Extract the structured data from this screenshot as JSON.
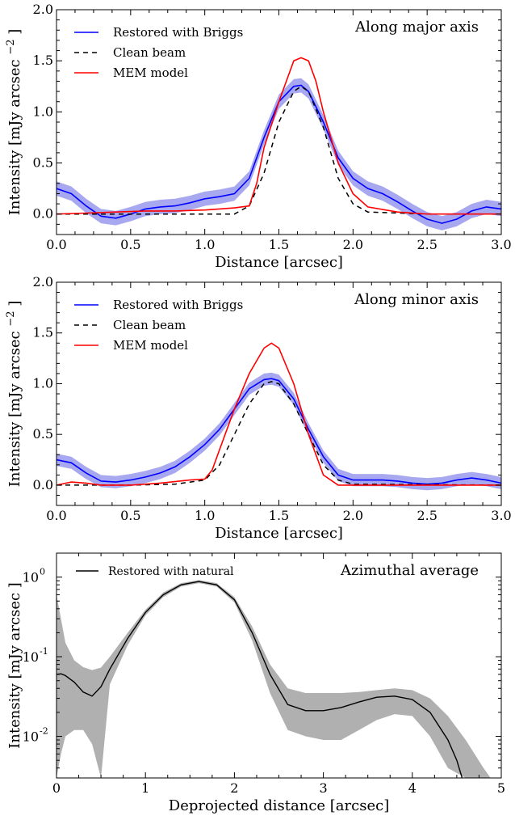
{
  "chart_data": [
    {
      "type": "line",
      "title": "Along major axis",
      "xlabel": "Distance [arcsec]",
      "ylabel": "Intensity [mJy arcsec",
      "ylabel_sup": "−2",
      "ylabel_close": "]",
      "xlim": [
        0.0,
        3.0
      ],
      "ylim": [
        -0.2,
        2.0
      ],
      "xticks": [
        "0.0",
        "0.5",
        "1.0",
        "1.5",
        "2.0",
        "2.5",
        "3.0"
      ],
      "yticks": [
        "0.0",
        "0.5",
        "1.0",
        "1.5",
        "2.0"
      ],
      "legend_position": "top-left",
      "colors": {
        "briggs": "#0000ff",
        "band": "#9999ee",
        "beam": "#000000",
        "mem": "#ff0000"
      },
      "series": [
        {
          "name": "Restored with Briggs",
          "style": "solid",
          "x": [
            0.0,
            0.1,
            0.2,
            0.3,
            0.4,
            0.5,
            0.6,
            0.7,
            0.8,
            0.9,
            1.0,
            1.1,
            1.2,
            1.3,
            1.4,
            1.5,
            1.6,
            1.65,
            1.7,
            1.8,
            1.9,
            2.0,
            2.1,
            2.2,
            2.3,
            2.4,
            2.5,
            2.6,
            2.7,
            2.8,
            2.9,
            3.0
          ],
          "y": [
            0.25,
            0.2,
            0.08,
            -0.02,
            -0.04,
            0.0,
            0.05,
            0.07,
            0.08,
            0.11,
            0.15,
            0.17,
            0.2,
            0.35,
            0.75,
            1.1,
            1.25,
            1.26,
            1.2,
            0.9,
            0.55,
            0.35,
            0.25,
            0.2,
            0.12,
            0.03,
            -0.05,
            -0.09,
            -0.05,
            0.03,
            0.07,
            0.05
          ],
          "band": 0.07
        },
        {
          "name": "Clean beam",
          "style": "dashed",
          "x": [
            0.0,
            0.5,
            1.0,
            1.2,
            1.3,
            1.4,
            1.5,
            1.6,
            1.65,
            1.7,
            1.8,
            1.9,
            2.0,
            2.1,
            2.5,
            3.0
          ],
          "y": [
            0.0,
            0.0,
            0.0,
            0.0,
            0.08,
            0.4,
            0.9,
            1.2,
            1.25,
            1.2,
            0.85,
            0.35,
            0.1,
            0.02,
            0.0,
            0.0
          ]
        },
        {
          "name": "MEM model",
          "style": "solid",
          "x": [
            0.0,
            0.2,
            0.4,
            0.6,
            0.8,
            1.0,
            1.2,
            1.3,
            1.35,
            1.4,
            1.5,
            1.6,
            1.65,
            1.7,
            1.75,
            1.8,
            1.9,
            2.0,
            2.1,
            2.3,
            2.5,
            3.0
          ],
          "y": [
            0.0,
            0.01,
            0.02,
            0.03,
            0.03,
            0.04,
            0.06,
            0.08,
            0.3,
            0.65,
            1.1,
            1.5,
            1.53,
            1.5,
            1.3,
            1.0,
            0.5,
            0.2,
            0.07,
            0.02,
            0.0,
            0.0
          ]
        }
      ]
    },
    {
      "type": "line",
      "title": "Along minor axis",
      "xlabel": "Distance [arcsec]",
      "ylabel": "Intensity [mJy arcsec",
      "ylabel_sup": "−2",
      "ylabel_close": "]",
      "xlim": [
        0.0,
        3.0
      ],
      "ylim": [
        -0.2,
        2.0
      ],
      "xticks": [
        "0.0",
        "0.5",
        "1.0",
        "1.5",
        "2.0",
        "2.5",
        "3.0"
      ],
      "yticks": [
        "0.0",
        "0.5",
        "1.0",
        "1.5",
        "2.0"
      ],
      "legend_position": "top-left",
      "colors": {
        "briggs": "#0000ff",
        "band": "#9999ee",
        "beam": "#000000",
        "mem": "#ff0000"
      },
      "series": [
        {
          "name": "Restored with Briggs",
          "style": "solid",
          "x": [
            0.0,
            0.1,
            0.2,
            0.3,
            0.4,
            0.5,
            0.6,
            0.7,
            0.8,
            0.9,
            1.0,
            1.1,
            1.2,
            1.3,
            1.4,
            1.45,
            1.5,
            1.6,
            1.7,
            1.8,
            1.9,
            2.0,
            2.1,
            2.2,
            2.3,
            2.4,
            2.5,
            2.6,
            2.7,
            2.8,
            2.9,
            3.0
          ],
          "y": [
            0.25,
            0.22,
            0.12,
            0.04,
            0.03,
            0.05,
            0.08,
            0.12,
            0.18,
            0.28,
            0.4,
            0.55,
            0.75,
            0.95,
            1.04,
            1.05,
            1.03,
            0.85,
            0.55,
            0.28,
            0.1,
            0.05,
            0.05,
            0.05,
            0.04,
            0.02,
            0.01,
            0.02,
            0.05,
            0.07,
            0.05,
            0.02
          ],
          "band": 0.06
        },
        {
          "name": "Clean beam",
          "style": "dashed",
          "x": [
            0.0,
            0.5,
            0.8,
            1.0,
            1.1,
            1.2,
            1.3,
            1.4,
            1.45,
            1.5,
            1.6,
            1.7,
            1.8,
            1.9,
            2.0,
            3.0
          ],
          "y": [
            0.0,
            0.0,
            0.01,
            0.05,
            0.2,
            0.5,
            0.8,
            1.0,
            1.02,
            1.0,
            0.8,
            0.5,
            0.2,
            0.05,
            0.01,
            0.0
          ],
          "band": 0
        },
        {
          "name": "MEM model",
          "style": "solid",
          "x": [
            0.0,
            0.1,
            0.2,
            0.3,
            0.5,
            0.7,
            0.9,
            1.0,
            1.05,
            1.1,
            1.2,
            1.3,
            1.4,
            1.45,
            1.5,
            1.6,
            1.7,
            1.8,
            1.9,
            2.0,
            2.5,
            3.0
          ],
          "y": [
            0.0,
            0.03,
            0.02,
            0.0,
            0.0,
            0.02,
            0.05,
            0.06,
            0.15,
            0.35,
            0.75,
            1.1,
            1.35,
            1.4,
            1.35,
            1.0,
            0.5,
            0.1,
            0.0,
            0.0,
            0.0,
            0.0
          ]
        }
      ]
    },
    {
      "type": "line",
      "title": "Azimuthal average",
      "xlabel": "Deprojected distance [arcsec]",
      "ylabel": "Intensity [mJy arcsec",
      "ylabel_sup": "",
      "ylabel_close": "]",
      "xlim": [
        0,
        5
      ],
      "ylim": [
        0.003,
        2.0
      ],
      "yscale": "log",
      "xticks": [
        "0",
        "1",
        "2",
        "3",
        "4",
        "5"
      ],
      "yticks": [
        "10",
        "10",
        "10"
      ],
      "ytick_exponents": [
        "0",
        "-1",
        "-2"
      ],
      "legend_position": "top-left",
      "colors": {
        "natural": "#000000",
        "band": "#b0b0b0"
      },
      "series": [
        {
          "name": "Restored with natural",
          "style": "solid",
          "x": [
            0.0,
            0.05,
            0.1,
            0.2,
            0.3,
            0.4,
            0.5,
            0.6,
            0.8,
            1.0,
            1.2,
            1.4,
            1.6,
            1.8,
            2.0,
            2.2,
            2.4,
            2.6,
            2.8,
            3.0,
            3.2,
            3.4,
            3.6,
            3.8,
            4.0,
            4.2,
            4.4,
            4.5,
            4.56
          ],
          "y": [
            0.06,
            0.061,
            0.058,
            0.048,
            0.036,
            0.032,
            0.042,
            0.07,
            0.17,
            0.36,
            0.6,
            0.8,
            0.88,
            0.8,
            0.52,
            0.2,
            0.06,
            0.025,
            0.021,
            0.021,
            0.023,
            0.027,
            0.031,
            0.032,
            0.029,
            0.02,
            0.009,
            0.005,
            0.003
          ]
        }
      ],
      "band": {
        "x": [
          0.0,
          0.05,
          0.1,
          0.2,
          0.3,
          0.4,
          0.5,
          0.6,
          0.8,
          1.0,
          1.2,
          1.4,
          1.6,
          1.8,
          2.0,
          2.2,
          2.4,
          2.6,
          2.8,
          3.0,
          3.2,
          3.4,
          3.6,
          3.8,
          4.0,
          4.2,
          4.4,
          4.6,
          4.8,
          4.88
        ],
        "upper": [
          0.6,
          0.3,
          0.15,
          0.09,
          0.074,
          0.068,
          0.073,
          0.1,
          0.2,
          0.39,
          0.64,
          0.84,
          0.92,
          0.84,
          0.56,
          0.24,
          0.08,
          0.04,
          0.035,
          0.035,
          0.035,
          0.036,
          0.038,
          0.04,
          0.038,
          0.03,
          0.018,
          0.009,
          0.004,
          0.003
        ],
        "lower": [
          0.003,
          0.006,
          0.01,
          0.012,
          0.012,
          0.008,
          0.003,
          0.045,
          0.14,
          0.33,
          0.56,
          0.76,
          0.84,
          0.76,
          0.48,
          0.16,
          0.035,
          0.012,
          0.01,
          0.009,
          0.009,
          0.012,
          0.016,
          0.019,
          0.018,
          0.01,
          0.004,
          0.003,
          0.003,
          0.003
        ]
      }
    }
  ]
}
